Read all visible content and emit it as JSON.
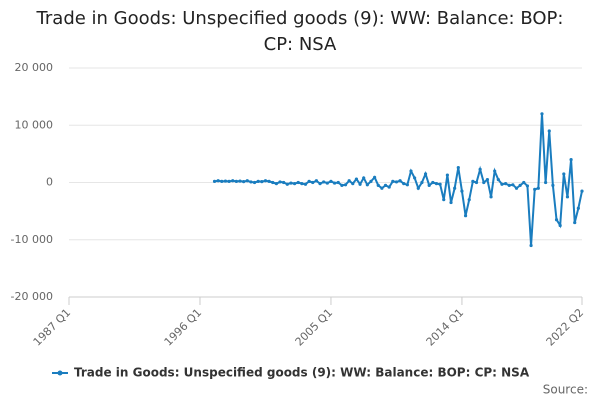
{
  "chart_data": {
    "type": "line",
    "title": "Trade in Goods: Unspecified goods (9): WW: Balance: BOP: CP: NSA",
    "source": "Source:",
    "categories": [
      "1987 Q1",
      null,
      null,
      null,
      null,
      null,
      null,
      null,
      null,
      null,
      null,
      null,
      null,
      null,
      null,
      null,
      null,
      null,
      null,
      null,
      null,
      null,
      null,
      null,
      null,
      null,
      null,
      null,
      null,
      null,
      null,
      null,
      null,
      null,
      null,
      null,
      "1996 Q1",
      null,
      null,
      null,
      null,
      null,
      null,
      null,
      null,
      null,
      null,
      null,
      null,
      null,
      null,
      null,
      null,
      null,
      null,
      null,
      null,
      null,
      null,
      null,
      null,
      null,
      null,
      null,
      null,
      null,
      null,
      null,
      null,
      null,
      null,
      null,
      "2005 Q1",
      null,
      null,
      null,
      null,
      null,
      null,
      null,
      null,
      null,
      null,
      null,
      null,
      null,
      null,
      null,
      null,
      null,
      null,
      null,
      null,
      null,
      null,
      null,
      null,
      null,
      null,
      null,
      null,
      null,
      null,
      null,
      null,
      null,
      null,
      null,
      "2014 Q1",
      null,
      null,
      null,
      null,
      null,
      null,
      null,
      null,
      null,
      null,
      null,
      null,
      null,
      null,
      null,
      null,
      null,
      null,
      null,
      null,
      null,
      null,
      null,
      null,
      null,
      null,
      null,
      null,
      null,
      null,
      null,
      null,
      "2022 Q2"
    ],
    "series": [
      {
        "name": "Trade in Goods: Unspecified goods (9): WW: Balance: BOP: CP: NSA",
        "color": "#1a7dbf",
        "values": [
          null,
          null,
          null,
          null,
          null,
          null,
          null,
          null,
          null,
          null,
          null,
          null,
          null,
          null,
          null,
          null,
          null,
          null,
          null,
          null,
          null,
          null,
          null,
          null,
          null,
          null,
          null,
          null,
          null,
          null,
          null,
          null,
          null,
          null,
          null,
          null,
          null,
          null,
          null,
          null,
          200,
          300,
          200,
          250,
          200,
          300,
          200,
          250,
          150,
          300,
          100,
          0,
          200,
          150,
          300,
          200,
          0,
          -200,
          100,
          0,
          -300,
          -100,
          -200,
          0,
          -200,
          -300,
          200,
          0,
          300,
          -200,
          100,
          -100,
          200,
          -100,
          0,
          -500,
          -400,
          300,
          -200,
          600,
          -300,
          800,
          -400,
          200,
          900,
          -500,
          -1000,
          -500,
          -800,
          200,
          100,
          300,
          -200,
          -400,
          2000,
          800,
          -1000,
          0,
          1500,
          -500,
          0,
          -200,
          -300,
          -3000,
          1300,
          -3500,
          -1000,
          2600,
          -1500,
          -5800,
          -3000,
          200,
          0,
          2300,
          0,
          500,
          -2500,
          2000,
          500,
          -300,
          -200,
          -500,
          -400,
          -1000,
          -500,
          0,
          -600,
          -11000,
          -1200,
          -1000,
          12000,
          0,
          9000,
          -500,
          -6500,
          -7500,
          1500,
          -2500,
          4000,
          -7000,
          -4500,
          -1500
        ]
      }
    ],
    "ylim": [
      -20000,
      20000
    ],
    "yticks": [
      {
        "value": -20000,
        "label": "-20 000"
      },
      {
        "value": -10000,
        "label": "-10 000"
      },
      0,
      {
        "value": 10000,
        "label": "10 000"
      },
      {
        "value": 20000,
        "label": "20 000"
      }
    ],
    "grid": true
  }
}
